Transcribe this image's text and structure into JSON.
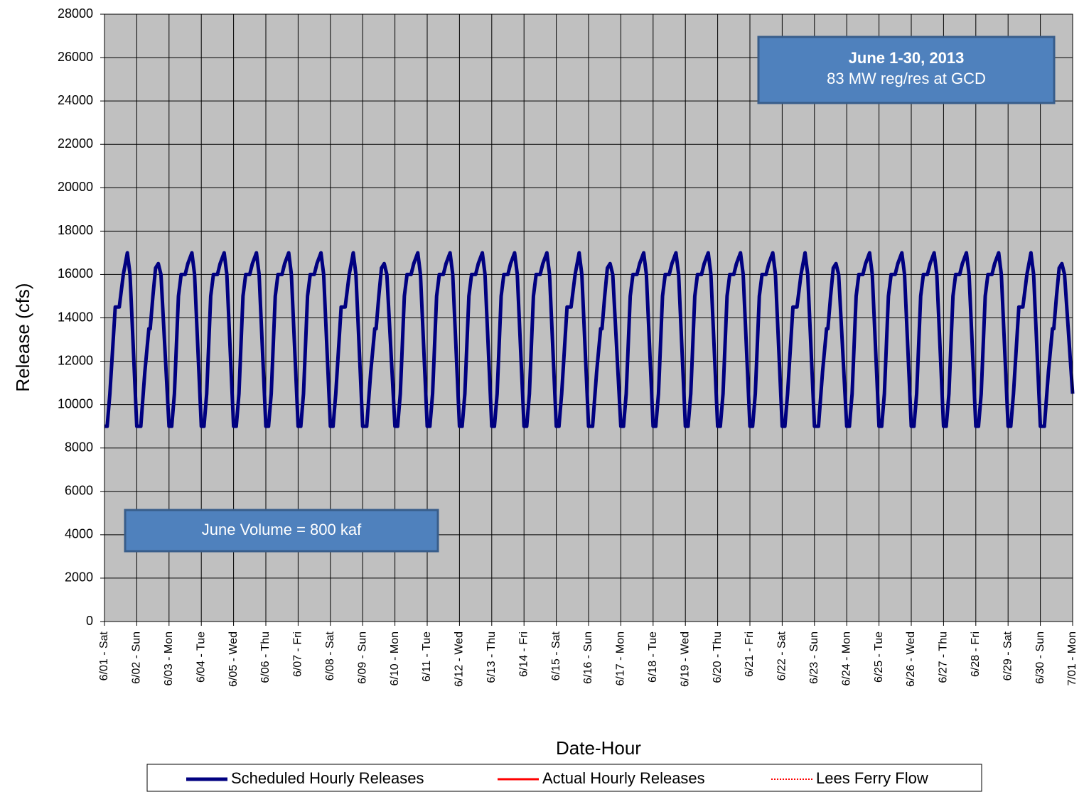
{
  "chart_data": {
    "type": "line",
    "x_label": "Date-Hour",
    "y_label": "Release (cfs)",
    "annotations": [
      "June 1-30, 2013",
      "83 MW reg/res at GCD",
      "June Volume = 800 kaf"
    ],
    "xlim": [
      0,
      720
    ],
    "ylim": [
      0,
      28000
    ],
    "yticks": [
      0,
      2000,
      4000,
      6000,
      8000,
      10000,
      12000,
      14000,
      16000,
      18000,
      20000,
      22000,
      24000,
      26000,
      28000
    ],
    "xticks": [
      {
        "value": 0,
        "label": "6/01 - Sat"
      },
      {
        "value": 24,
        "label": "6/02 - Sun"
      },
      {
        "value": 48,
        "label": "6/03 - Mon"
      },
      {
        "value": 72,
        "label": "6/04 - Tue"
      },
      {
        "value": 96,
        "label": "6/05 - Wed"
      },
      {
        "value": 120,
        "label": "6/06 - Thu"
      },
      {
        "value": 144,
        "label": "6/07 - Fri"
      },
      {
        "value": 168,
        "label": "6/08 - Sat"
      },
      {
        "value": 192,
        "label": "6/09 - Sun"
      },
      {
        "value": 216,
        "label": "6/10 - Mon"
      },
      {
        "value": 240,
        "label": "6/11 - Tue"
      },
      {
        "value": 264,
        "label": "6/12 - Wed"
      },
      {
        "value": 288,
        "label": "6/13 - Thu"
      },
      {
        "value": 312,
        "label": "6/14 - Fri"
      },
      {
        "value": 336,
        "label": "6/15 - Sat"
      },
      {
        "value": 360,
        "label": "6/16 - Sun"
      },
      {
        "value": 384,
        "label": "6/17 - Mon"
      },
      {
        "value": 408,
        "label": "6/18 - Tue"
      },
      {
        "value": 432,
        "label": "6/19 - Wed"
      },
      {
        "value": 456,
        "label": "6/20 - Thu"
      },
      {
        "value": 480,
        "label": "6/21 - Fri"
      },
      {
        "value": 504,
        "label": "6/22 - Sat"
      },
      {
        "value": 528,
        "label": "6/23 - Sun"
      },
      {
        "value": 552,
        "label": "6/24 - Mon"
      },
      {
        "value": 576,
        "label": "6/25 - Tue"
      },
      {
        "value": 600,
        "label": "6/26 - Wed"
      },
      {
        "value": 624,
        "label": "6/27 - Thu"
      },
      {
        "value": 648,
        "label": "6/28 - Fri"
      },
      {
        "value": 672,
        "label": "6/29 - Sat"
      },
      {
        "value": 696,
        "label": "6/30 - Sun"
      },
      {
        "value": 720,
        "label": "7/01 - Mon"
      }
    ],
    "grid": true,
    "background": "#c0c0c0",
    "series": [
      {
        "name": "Scheduled Hourly Releases",
        "color": "#000080",
        "style": "solid",
        "x": [
          0,
          2,
          4,
          8,
          11,
          14,
          17,
          19,
          24,
          27,
          30,
          33,
          34,
          36,
          38,
          40,
          42,
          48,
          50,
          52,
          55,
          57,
          60,
          62,
          65,
          67,
          72,
          74,
          76,
          79,
          81,
          84,
          86,
          89,
          91,
          96,
          98,
          100,
          103,
          105,
          108,
          110,
          113,
          115,
          120,
          122,
          124,
          127,
          129,
          132,
          134,
          137,
          139,
          144,
          146,
          148,
          151,
          153,
          156,
          158,
          161,
          163,
          168,
          170,
          172,
          176,
          179,
          182,
          185,
          187,
          192,
          195,
          198,
          201,
          202,
          204,
          206,
          208,
          210,
          216,
          218,
          220,
          223,
          225,
          228,
          230,
          233,
          235,
          240,
          242,
          244,
          247,
          249,
          252,
          254,
          257,
          259,
          264,
          266,
          268,
          271,
          273,
          276,
          278,
          281,
          283,
          288,
          290,
          292,
          295,
          297,
          300,
          302,
          305,
          307,
          312,
          314,
          316,
          319,
          321,
          324,
          326,
          329,
          331,
          336,
          338,
          340,
          344,
          347,
          350,
          353,
          355,
          360,
          363,
          366,
          369,
          370,
          372,
          374,
          376,
          378,
          384,
          386,
          388,
          391,
          393,
          396,
          398,
          401,
          403,
          408,
          410,
          412,
          415,
          417,
          420,
          422,
          425,
          427,
          432,
          434,
          436,
          439,
          441,
          444,
          446,
          449,
          451,
          456,
          458,
          460,
          463,
          465,
          468,
          470,
          473,
          475,
          480,
          482,
          484,
          487,
          489,
          492,
          494,
          497,
          499,
          504,
          506,
          508,
          512,
          515,
          518,
          521,
          523,
          528,
          531,
          534,
          537,
          538,
          540,
          542,
          544,
          546,
          552,
          554,
          556,
          559,
          561,
          564,
          566,
          569,
          571,
          576,
          578,
          580,
          583,
          585,
          588,
          590,
          593,
          595,
          600,
          602,
          604,
          607,
          609,
          612,
          614,
          617,
          619,
          624,
          626,
          628,
          631,
          633,
          636,
          638,
          641,
          643,
          648,
          650,
          652,
          655,
          657,
          660,
          662,
          665,
          667,
          672,
          674,
          676,
          680,
          683,
          686,
          689,
          691,
          696,
          699,
          702,
          705,
          706,
          708,
          710,
          712,
          714,
          720
        ],
        "values": [
          9000,
          9000,
          10500,
          14500,
          14500,
          16000,
          17000,
          16000,
          9000,
          9000,
          11500,
          13500,
          13500,
          15000,
          16300,
          16500,
          16000,
          9000,
          9000,
          10500,
          15000,
          16000,
          16000,
          16500,
          17000,
          16000,
          9000,
          9000,
          10500,
          15000,
          16000,
          16000,
          16500,
          17000,
          16000,
          9000,
          9000,
          10500,
          15000,
          16000,
          16000,
          16500,
          17000,
          16000,
          9000,
          9000,
          10500,
          15000,
          16000,
          16000,
          16500,
          17000,
          16000,
          9000,
          9000,
          10500,
          15000,
          16000,
          16000,
          16500,
          17000,
          16000,
          9000,
          9000,
          10500,
          14500,
          14500,
          16000,
          17000,
          16000,
          9000,
          9000,
          11500,
          13500,
          13500,
          15000,
          16300,
          16500,
          16000,
          9000,
          9000,
          10500,
          15000,
          16000,
          16000,
          16500,
          17000,
          16000,
          9000,
          9000,
          10500,
          15000,
          16000,
          16000,
          16500,
          17000,
          16000,
          9000,
          9000,
          10500,
          15000,
          16000,
          16000,
          16500,
          17000,
          16000,
          9000,
          9000,
          10500,
          15000,
          16000,
          16000,
          16500,
          17000,
          16000,
          9000,
          9000,
          10500,
          15000,
          16000,
          16000,
          16500,
          17000,
          16000,
          9000,
          9000,
          10500,
          14500,
          14500,
          16000,
          17000,
          16000,
          9000,
          9000,
          11500,
          13500,
          13500,
          15000,
          16300,
          16500,
          16000,
          9000,
          9000,
          10500,
          15000,
          16000,
          16000,
          16500,
          17000,
          16000,
          9000,
          9000,
          10500,
          15000,
          16000,
          16000,
          16500,
          17000,
          16000,
          9000,
          9000,
          10500,
          15000,
          16000,
          16000,
          16500,
          17000,
          16000,
          9000,
          9000,
          10500,
          15000,
          16000,
          16000,
          16500,
          17000,
          16000,
          9000,
          9000,
          10500,
          15000,
          16000,
          16000,
          16500,
          17000,
          16000,
          9000,
          9000,
          10500,
          14500,
          14500,
          16000,
          17000,
          16000,
          9000,
          9000,
          11500,
          13500,
          13500,
          15000,
          16300,
          16500,
          16000,
          9000,
          9000,
          10500,
          15000,
          16000,
          16000,
          16500,
          17000,
          16000,
          9000,
          9000,
          10500,
          15000,
          16000,
          16000,
          16500,
          17000,
          16000,
          9000,
          9000,
          10500,
          15000,
          16000,
          16000,
          16500,
          17000,
          16000,
          9000,
          9000,
          10500,
          15000,
          16000,
          16000,
          16500,
          17000,
          16000,
          9000,
          9000,
          10500,
          15000,
          16000,
          16000,
          16500,
          17000,
          16000,
          9000,
          9000,
          10500,
          14500,
          14500,
          16000,
          17000,
          16000,
          9000,
          9000,
          11500,
          13500,
          13500,
          15000,
          16300,
          16500,
          16000,
          10500
        ]
      },
      {
        "name": "Actual Hourly Releases",
        "color": "#ff0000",
        "style": "solid",
        "x": [],
        "values": []
      },
      {
        "name": "Lees Ferry Flow",
        "color": "#ff0000",
        "style": "dotted",
        "x": [],
        "values": []
      }
    ]
  }
}
